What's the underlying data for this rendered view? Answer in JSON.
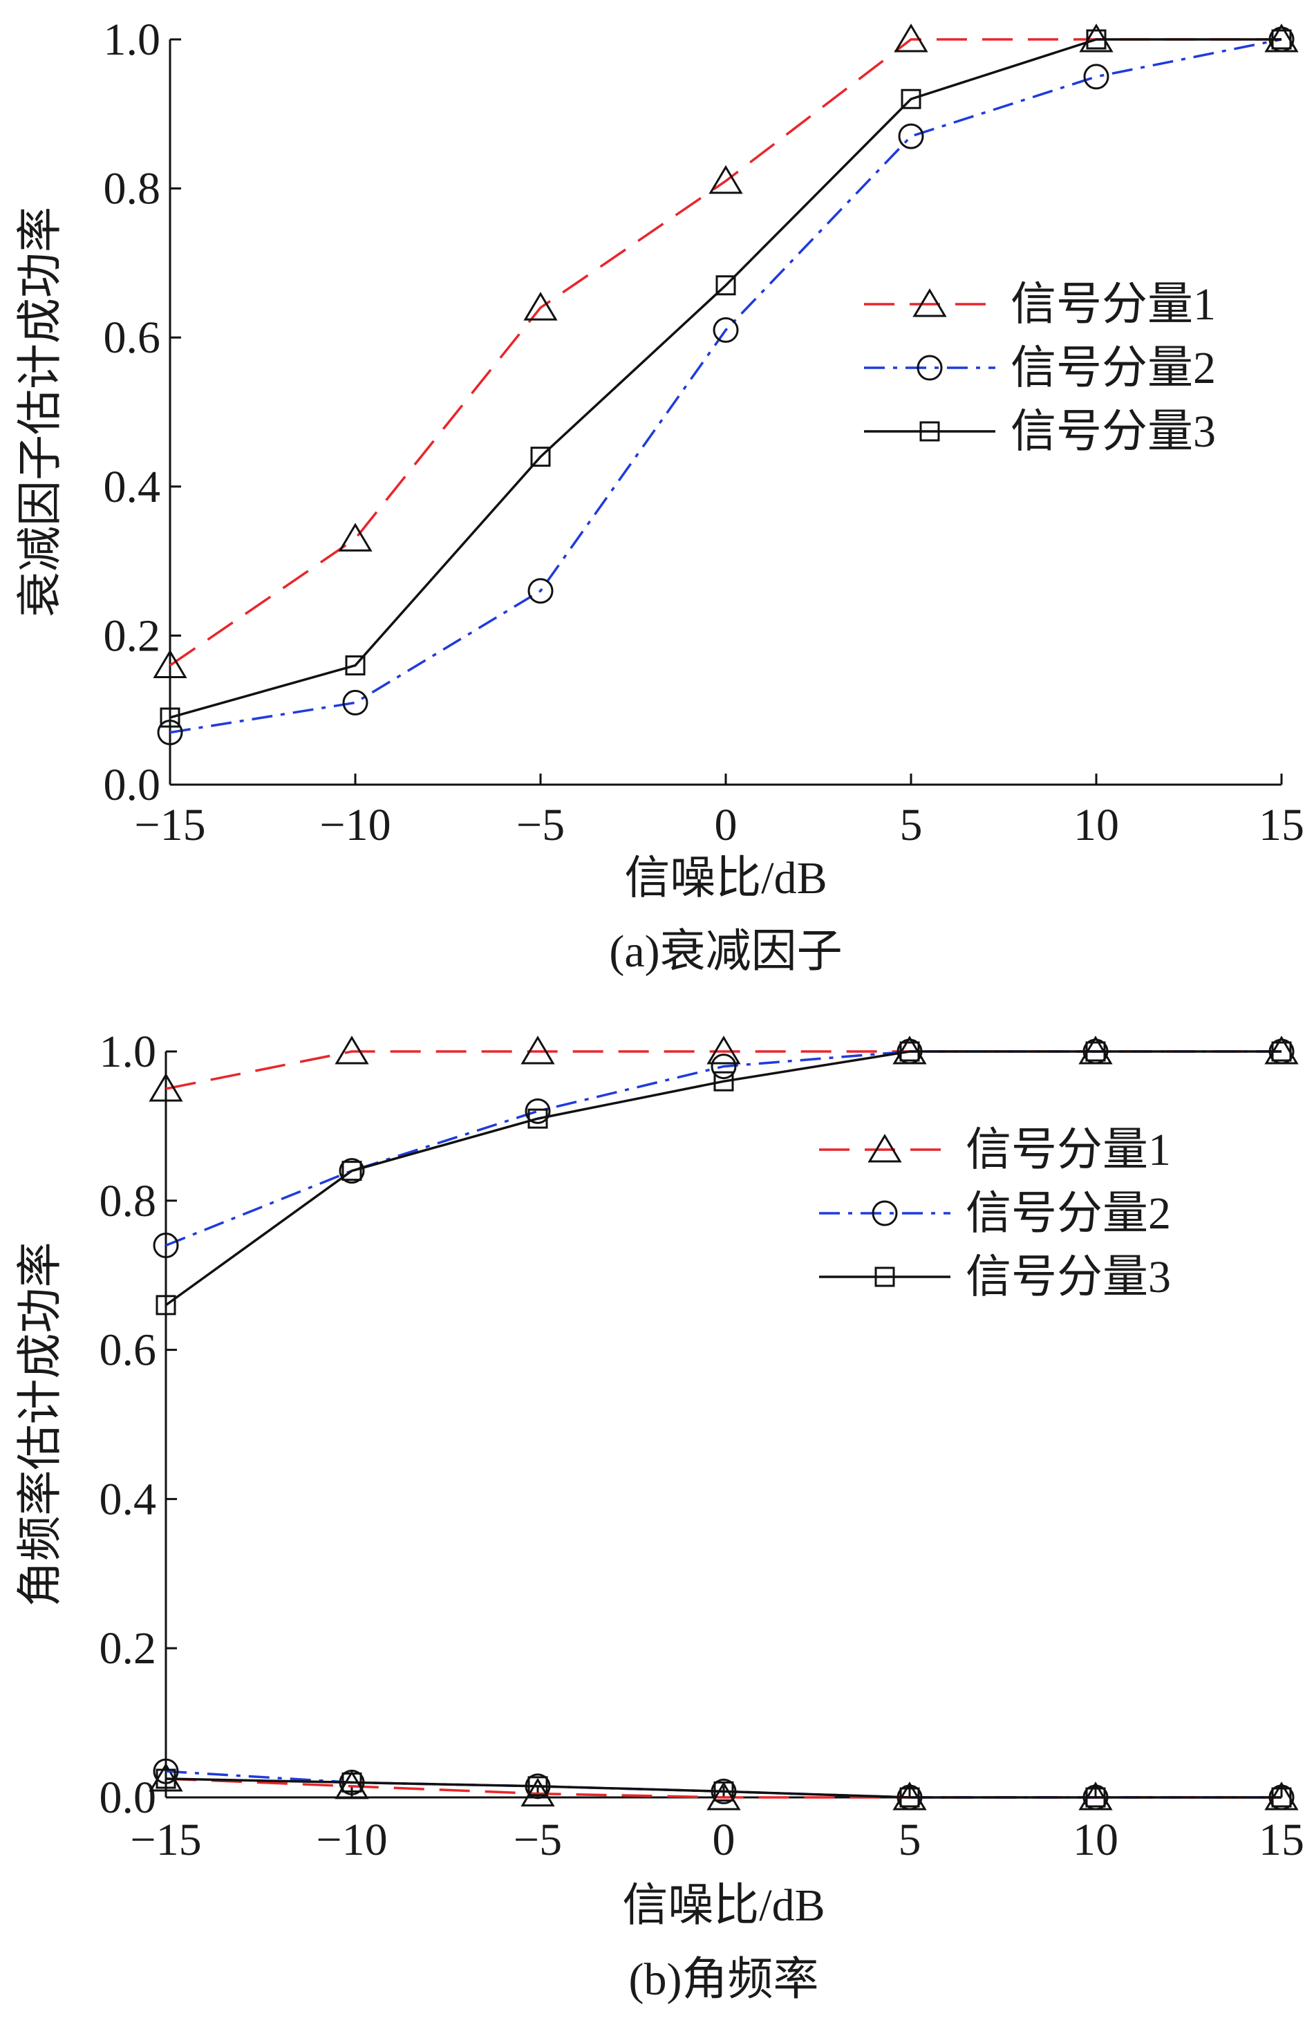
{
  "chart_data": [
    {
      "type": "line",
      "caption": "(a)衰减因子",
      "xlabel": "信噪比/dB",
      "ylabel": "衰减因子估计成功率",
      "xlim": [
        -15,
        15
      ],
      "ylim": [
        0,
        1
      ],
      "xticks": [
        -15,
        -10,
        -5,
        0,
        5,
        10,
        15
      ],
      "xtick_labels": [
        "−15",
        "−10",
        "−5",
        "0",
        "5",
        "10",
        "15"
      ],
      "yticks": [
        0,
        0.2,
        0.4,
        0.6,
        0.8,
        1.0
      ],
      "ytick_labels": [
        "0.0",
        "0.2",
        "0.4",
        "0.6",
        "0.8",
        "1.0"
      ],
      "grid": false,
      "legend_position": "right",
      "x": [
        -15,
        -10,
        -5,
        0,
        5,
        10,
        15
      ],
      "series": [
        {
          "name": "信号分量1",
          "values": [
            0.16,
            0.33,
            0.64,
            0.81,
            1.0,
            1.0,
            1.0
          ],
          "color": "#e8262b",
          "dash": "dashed",
          "marker": "triangle"
        },
        {
          "name": "信号分量2",
          "values": [
            0.07,
            0.11,
            0.26,
            0.61,
            0.87,
            0.95,
            1.0
          ],
          "color": "#1f3bdc",
          "dash": "dashdot",
          "marker": "circle"
        },
        {
          "name": "信号分量3",
          "values": [
            0.09,
            0.16,
            0.44,
            0.67,
            0.92,
            1.0,
            1.0
          ],
          "color": "#111111",
          "dash": "solid",
          "marker": "square"
        }
      ]
    },
    {
      "type": "line",
      "caption": "(b)角频率",
      "xlabel": "信噪比/dB",
      "ylabel": "角频率估计成功率",
      "xlim": [
        -15,
        15
      ],
      "ylim": [
        0,
        1
      ],
      "xticks": [
        -15,
        -10,
        -5,
        0,
        5,
        10,
        15
      ],
      "xtick_labels": [
        "−15",
        "−10",
        "−5",
        "0",
        "5",
        "10",
        "15"
      ],
      "yticks": [
        0,
        0.2,
        0.4,
        0.6,
        0.8,
        1.0
      ],
      "ytick_labels": [
        "0.0",
        "0.2",
        "0.4",
        "0.6",
        "0.8",
        "1.0"
      ],
      "grid": false,
      "legend_position": "right",
      "x": [
        -15,
        -10,
        -5,
        0,
        5,
        10,
        15
      ],
      "series": [
        {
          "name": "信号分量1",
          "values": [
            0.95,
            1.0,
            1.0,
            1.0,
            1.0,
            1.0,
            1.0
          ],
          "color": "#e8262b",
          "dash": "dashed",
          "marker": "triangle"
        },
        {
          "name": "信号分量2",
          "values": [
            0.74,
            0.84,
            0.92,
            0.98,
            1.0,
            1.0,
            1.0
          ],
          "color": "#1f3bdc",
          "dash": "dashdot",
          "marker": "circle"
        },
        {
          "name": "信号分量3",
          "values": [
            0.66,
            0.84,
            0.91,
            0.96,
            1.0,
            1.0,
            1.0
          ],
          "color": "#111111",
          "dash": "solid",
          "marker": "square"
        },
        {
          "values": [
            0.025,
            0.015,
            0.005,
            0.0,
            0.0,
            0.0,
            0.0
          ],
          "color": "#e8262b",
          "dash": "dashed",
          "marker": "triangle"
        },
        {
          "values": [
            0.035,
            0.02,
            0.015,
            0.008,
            0.0,
            0.0,
            0.0
          ],
          "color": "#1f3bdc",
          "dash": "dashdot",
          "marker": "circle"
        },
        {
          "values": [
            0.025,
            0.02,
            0.015,
            0.008,
            0.0,
            0.0,
            0.0
          ],
          "color": "#111111",
          "dash": "solid",
          "marker": "square"
        }
      ]
    }
  ]
}
